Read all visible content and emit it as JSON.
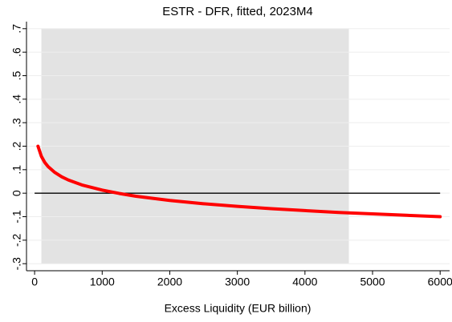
{
  "chart_data": {
    "type": "line",
    "title": "ESTR - DFR, fitted, 2023M4",
    "x_label": "Excess Liquidity (EUR billion)",
    "x": [
      50,
      100,
      150,
      200,
      300,
      400,
      500,
      700,
      1000,
      1250,
      1500,
      2000,
      2500,
      3000,
      3500,
      4000,
      4500,
      5000,
      5500,
      6000
    ],
    "series": [
      {
        "color": "#ff0000",
        "values": [
          0.2,
          0.157,
          0.131,
          0.113,
          0.088,
          0.07,
          0.056,
          0.035,
          0.013,
          -0.001,
          -0.013,
          -0.031,
          -0.045,
          -0.056,
          -0.066,
          -0.074,
          -0.082,
          -0.088,
          -0.094,
          -0.1
        ]
      }
    ],
    "xlim": [
      -120,
      6140
    ],
    "ylim": [
      -0.33,
      0.73
    ],
    "xticks": [
      0,
      1000,
      2000,
      3000,
      4000,
      5000,
      6000
    ],
    "yticks": [
      {
        "value": -0.3,
        "label": "-.3"
      },
      {
        "value": -0.2,
        "label": "-.2"
      },
      {
        "value": -0.1,
        "label": "-.1"
      },
      0,
      {
        "value": 0.1,
        "label": ".1"
      },
      {
        "value": 0.2,
        "label": ".2"
      },
      {
        "value": 0.3,
        "label": ".3"
      },
      {
        "value": 0.4,
        "label": ".4"
      },
      {
        "value": 0.5,
        "label": ".5"
      },
      {
        "value": 0.6,
        "label": ".6"
      },
      {
        "value": 0.7,
        "label": ".7"
      }
    ],
    "shaded_region": {
      "x": [
        100,
        4650
      ],
      "y": [
        -0.3,
        0.7
      ],
      "color": "#e3e3e3"
    },
    "reference_line": {
      "y": 0,
      "color": "#000000"
    },
    "grid": true
  }
}
